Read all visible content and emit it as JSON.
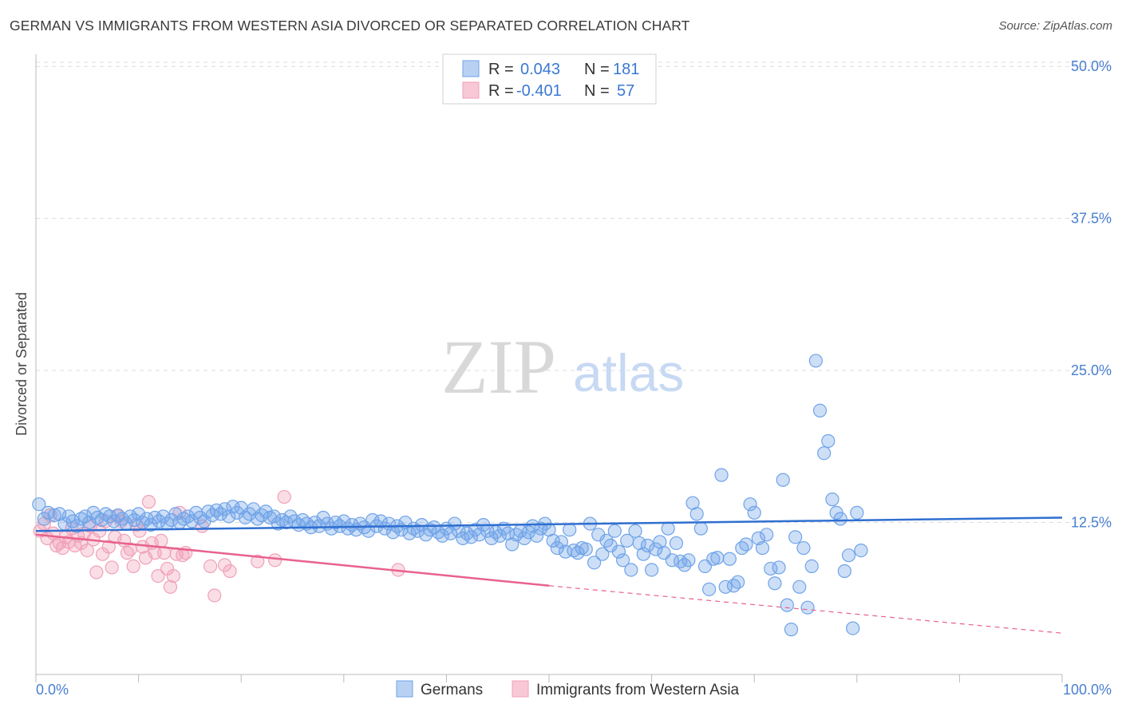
{
  "header": {
    "title": "GERMAN VS IMMIGRANTS FROM WESTERN ASIA DIVORCED OR SEPARATED CORRELATION CHART",
    "source": "Source: ZipAtlas.com"
  },
  "watermark": {
    "zip": "ZIP",
    "atlas": "atlas"
  },
  "legend": {
    "series1": {
      "r_label": "R =",
      "r_value": "0.043",
      "n_label": "N =",
      "n_value": "181"
    },
    "series2": {
      "r_label": "R =",
      "r_value": "-0.401",
      "n_label": "N =",
      "n_value": "57"
    }
  },
  "colors": {
    "blue": "#6fa3e8",
    "blue_line": "#2f6fd0",
    "pink": "#f0a0b8",
    "pink_line": "#e8628e",
    "grid": "#dcdcdc",
    "tick_text": "#4a7fd0"
  },
  "chart_data": {
    "type": "scatter",
    "title": "GERMAN VS IMMIGRANTS FROM WESTERN ASIA DIVORCED OR SEPARATED CORRELATION CHART",
    "xlabel": "",
    "ylabel": "Divorced or Separated",
    "xlim": [
      0,
      100
    ],
    "ylim": [
      0,
      51
    ],
    "x_tick_labels": [
      "0.0%",
      "100.0%"
    ],
    "y_tick_values": [
      12.5,
      25.0,
      37.5,
      50.0
    ],
    "y_tick_labels": [
      "12.5%",
      "25.0%",
      "37.5%",
      "50.0%"
    ],
    "grid": true,
    "legend_position": "top-center",
    "series": [
      {
        "name": "Germans",
        "color": "#6fa3e8",
        "trend": {
          "x": [
            0,
            100
          ],
          "y": [
            11.8,
            12.9
          ]
        },
        "points": [
          [
            0.3,
            14
          ],
          [
            0.8,
            12.8
          ],
          [
            1.2,
            13.3
          ],
          [
            1.8,
            13.1
          ],
          [
            2.3,
            13.2
          ],
          [
            2.8,
            12.4
          ],
          [
            3.2,
            13.0
          ],
          [
            3.6,
            12.6
          ],
          [
            4.0,
            12.2
          ],
          [
            4.4,
            12.8
          ],
          [
            4.8,
            13.0
          ],
          [
            5.2,
            12.5
          ],
          [
            5.6,
            13.3
          ],
          [
            6.0,
            12.9
          ],
          [
            6.4,
            12.7
          ],
          [
            6.8,
            13.2
          ],
          [
            7.2,
            13.0
          ],
          [
            7.6,
            12.6
          ],
          [
            8.0,
            13.1
          ],
          [
            8.4,
            12.8
          ],
          [
            8.8,
            12.4
          ],
          [
            9.2,
            13.0
          ],
          [
            9.6,
            12.7
          ],
          [
            10.0,
            13.2
          ],
          [
            10.4,
            12.5
          ],
          [
            10.8,
            12.8
          ],
          [
            11.2,
            12.3
          ],
          [
            11.6,
            12.9
          ],
          [
            12.0,
            12.6
          ],
          [
            12.4,
            13.0
          ],
          [
            12.8,
            12.4
          ],
          [
            13.2,
            12.7
          ],
          [
            13.6,
            13.2
          ],
          [
            14.0,
            12.5
          ],
          [
            14.4,
            12.8
          ],
          [
            14.8,
            13.0
          ],
          [
            15.2,
            12.6
          ],
          [
            15.6,
            13.3
          ],
          [
            16.0,
            12.9
          ],
          [
            16.4,
            12.6
          ],
          [
            16.8,
            13.4
          ],
          [
            17.2,
            13.1
          ],
          [
            17.6,
            13.5
          ],
          [
            18.0,
            13.2
          ],
          [
            18.4,
            13.6
          ],
          [
            18.8,
            13.0
          ],
          [
            19.2,
            13.8
          ],
          [
            19.6,
            13.3
          ],
          [
            20.0,
            13.7
          ],
          [
            20.4,
            12.9
          ],
          [
            20.8,
            13.2
          ],
          [
            21.2,
            13.6
          ],
          [
            21.6,
            12.8
          ],
          [
            22.0,
            13.1
          ],
          [
            22.4,
            13.4
          ],
          [
            22.8,
            12.9
          ],
          [
            23.2,
            13.0
          ],
          [
            23.6,
            12.4
          ],
          [
            24.0,
            12.7
          ],
          [
            24.4,
            12.5
          ],
          [
            24.8,
            13.0
          ],
          [
            25.2,
            12.6
          ],
          [
            25.6,
            12.3
          ],
          [
            26.0,
            12.7
          ],
          [
            26.4,
            12.4
          ],
          [
            26.8,
            12.1
          ],
          [
            27.2,
            12.5
          ],
          [
            27.6,
            12.2
          ],
          [
            28.0,
            12.9
          ],
          [
            28.4,
            12.4
          ],
          [
            28.8,
            12.0
          ],
          [
            29.2,
            12.5
          ],
          [
            29.6,
            12.2
          ],
          [
            30.0,
            12.6
          ],
          [
            30.4,
            12.0
          ],
          [
            30.8,
            12.3
          ],
          [
            31.2,
            11.9
          ],
          [
            31.6,
            12.4
          ],
          [
            32.0,
            12.1
          ],
          [
            32.4,
            11.8
          ],
          [
            32.8,
            12.7
          ],
          [
            33.2,
            12.2
          ],
          [
            33.6,
            12.6
          ],
          [
            34.0,
            12.0
          ],
          [
            34.4,
            12.4
          ],
          [
            34.8,
            11.7
          ],
          [
            35.2,
            12.2
          ],
          [
            35.6,
            11.9
          ],
          [
            36.0,
            12.5
          ],
          [
            36.4,
            11.6
          ],
          [
            36.8,
            12.0
          ],
          [
            37.2,
            11.8
          ],
          [
            37.6,
            12.3
          ],
          [
            38.0,
            11.5
          ],
          [
            38.4,
            11.9
          ],
          [
            38.8,
            12.1
          ],
          [
            39.2,
            11.7
          ],
          [
            39.6,
            11.4
          ],
          [
            40.0,
            12.0
          ],
          [
            40.4,
            11.6
          ],
          [
            40.8,
            12.4
          ],
          [
            41.2,
            11.8
          ],
          [
            41.6,
            11.2
          ],
          [
            42.0,
            11.6
          ],
          [
            42.4,
            11.3
          ],
          [
            42.8,
            11.9
          ],
          [
            43.2,
            11.5
          ],
          [
            43.6,
            12.3
          ],
          [
            44.0,
            11.8
          ],
          [
            44.4,
            11.2
          ],
          [
            44.8,
            11.7
          ],
          [
            45.2,
            11.4
          ],
          [
            45.6,
            12.0
          ],
          [
            46.0,
            11.6
          ],
          [
            46.4,
            10.7
          ],
          [
            46.8,
            11.5
          ],
          [
            47.2,
            11.8
          ],
          [
            47.6,
            11.2
          ],
          [
            48.0,
            11.7
          ],
          [
            48.4,
            12.2
          ],
          [
            48.8,
            11.4
          ],
          [
            49.2,
            12.0
          ],
          [
            49.6,
            12.4
          ],
          [
            50.0,
            11.9
          ],
          [
            50.4,
            11.0
          ],
          [
            50.8,
            10.4
          ],
          [
            51.2,
            10.9
          ],
          [
            51.6,
            10.1
          ],
          [
            52.0,
            11.9
          ],
          [
            52.4,
            10.2
          ],
          [
            52.8,
            10.0
          ],
          [
            53.2,
            10.4
          ],
          [
            53.6,
            10.3
          ],
          [
            54.0,
            12.4
          ],
          [
            54.4,
            9.2
          ],
          [
            54.8,
            11.5
          ],
          [
            55.2,
            9.9
          ],
          [
            55.6,
            11.0
          ],
          [
            56.0,
            10.6
          ],
          [
            56.4,
            11.8
          ],
          [
            56.8,
            10.1
          ],
          [
            57.2,
            9.4
          ],
          [
            57.6,
            11.0
          ],
          [
            58.0,
            8.6
          ],
          [
            58.4,
            11.8
          ],
          [
            58.8,
            10.8
          ],
          [
            59.2,
            9.9
          ],
          [
            59.6,
            10.6
          ],
          [
            60.0,
            8.6
          ],
          [
            60.4,
            10.3
          ],
          [
            60.8,
            10.9
          ],
          [
            61.2,
            10.0
          ],
          [
            61.6,
            12.0
          ],
          [
            62.0,
            9.4
          ],
          [
            62.4,
            10.8
          ],
          [
            62.8,
            9.3
          ],
          [
            63.2,
            9.0
          ],
          [
            63.6,
            9.4
          ],
          [
            64.0,
            14.1
          ],
          [
            64.4,
            13.2
          ],
          [
            64.8,
            12.0
          ],
          [
            65.2,
            8.9
          ],
          [
            65.6,
            7.0
          ],
          [
            66.0,
            9.5
          ],
          [
            66.4,
            9.6
          ],
          [
            66.8,
            16.4
          ],
          [
            67.2,
            7.2
          ],
          [
            67.6,
            9.5
          ],
          [
            68.0,
            7.3
          ],
          [
            68.4,
            7.6
          ],
          [
            68.8,
            10.4
          ],
          [
            69.2,
            10.7
          ],
          [
            69.6,
            14.0
          ],
          [
            70.0,
            13.3
          ],
          [
            70.4,
            11.2
          ],
          [
            70.8,
            10.4
          ],
          [
            71.2,
            11.5
          ],
          [
            71.6,
            8.7
          ],
          [
            72.0,
            7.5
          ],
          [
            72.4,
            8.8
          ],
          [
            72.8,
            16.0
          ],
          [
            73.2,
            5.7
          ],
          [
            73.6,
            3.7
          ],
          [
            74.0,
            11.3
          ],
          [
            74.4,
            7.2
          ],
          [
            74.8,
            10.4
          ],
          [
            75.2,
            5.5
          ],
          [
            75.6,
            8.9
          ],
          [
            76.0,
            25.8
          ],
          [
            76.4,
            21.7
          ],
          [
            76.8,
            18.2
          ],
          [
            77.2,
            19.2
          ],
          [
            77.6,
            14.4
          ],
          [
            78.0,
            13.3
          ],
          [
            78.4,
            12.8
          ],
          [
            78.8,
            8.5
          ],
          [
            79.2,
            9.8
          ],
          [
            79.6,
            3.8
          ],
          [
            80.0,
            13.3
          ],
          [
            80.4,
            10.2
          ]
        ]
      },
      {
        "name": "Immigrants from Western Asia",
        "color": "#f0a0b8",
        "trend": {
          "x": [
            0,
            50
          ],
          "y": [
            11.5,
            7.3
          ],
          "dashed_to": [
            100,
            3.4
          ]
        },
        "points": [
          [
            0.4,
            11.8
          ],
          [
            0.8,
            12.4
          ],
          [
            1.1,
            11.2
          ],
          [
            1.4,
            13.1
          ],
          [
            1.7,
            11.6
          ],
          [
            2.0,
            10.6
          ],
          [
            2.3,
            10.8
          ],
          [
            2.6,
            10.4
          ],
          [
            2.9,
            11.3
          ],
          [
            3.2,
            10.9
          ],
          [
            3.5,
            12.0
          ],
          [
            3.8,
            10.6
          ],
          [
            4.1,
            11.4
          ],
          [
            4.4,
            10.8
          ],
          [
            4.7,
            11.6
          ],
          [
            5.0,
            10.2
          ],
          [
            5.3,
            12.2
          ],
          [
            5.6,
            11.1
          ],
          [
            5.9,
            8.4
          ],
          [
            6.2,
            11.8
          ],
          [
            6.5,
            9.9
          ],
          [
            6.8,
            12.6
          ],
          [
            7.1,
            10.5
          ],
          [
            7.4,
            8.8
          ],
          [
            7.7,
            11.3
          ],
          [
            8.0,
            13.0
          ],
          [
            8.3,
            12.6
          ],
          [
            8.6,
            11.0
          ],
          [
            8.9,
            10.0
          ],
          [
            9.2,
            10.3
          ],
          [
            9.5,
            8.9
          ],
          [
            9.8,
            12.3
          ],
          [
            10.1,
            11.8
          ],
          [
            10.4,
            10.5
          ],
          [
            10.7,
            9.6
          ],
          [
            11.0,
            14.2
          ],
          [
            11.3,
            10.8
          ],
          [
            11.6,
            10.0
          ],
          [
            11.9,
            8.1
          ],
          [
            12.2,
            11.0
          ],
          [
            12.5,
            10.0
          ],
          [
            12.8,
            8.7
          ],
          [
            13.1,
            7.2
          ],
          [
            13.4,
            8.1
          ],
          [
            13.7,
            9.9
          ],
          [
            14.0,
            13.3
          ],
          [
            14.3,
            9.8
          ],
          [
            14.6,
            10.0
          ],
          [
            16.2,
            12.2
          ],
          [
            17.0,
            8.9
          ],
          [
            17.4,
            6.5
          ],
          [
            18.4,
            9.0
          ],
          [
            18.9,
            8.5
          ],
          [
            21.6,
            9.3
          ],
          [
            23.3,
            9.4
          ],
          [
            24.2,
            14.6
          ],
          [
            35.3,
            8.6
          ]
        ]
      }
    ]
  },
  "bottom_legend": {
    "item1": "Germans",
    "item2": "Immigrants from Western Asia"
  }
}
